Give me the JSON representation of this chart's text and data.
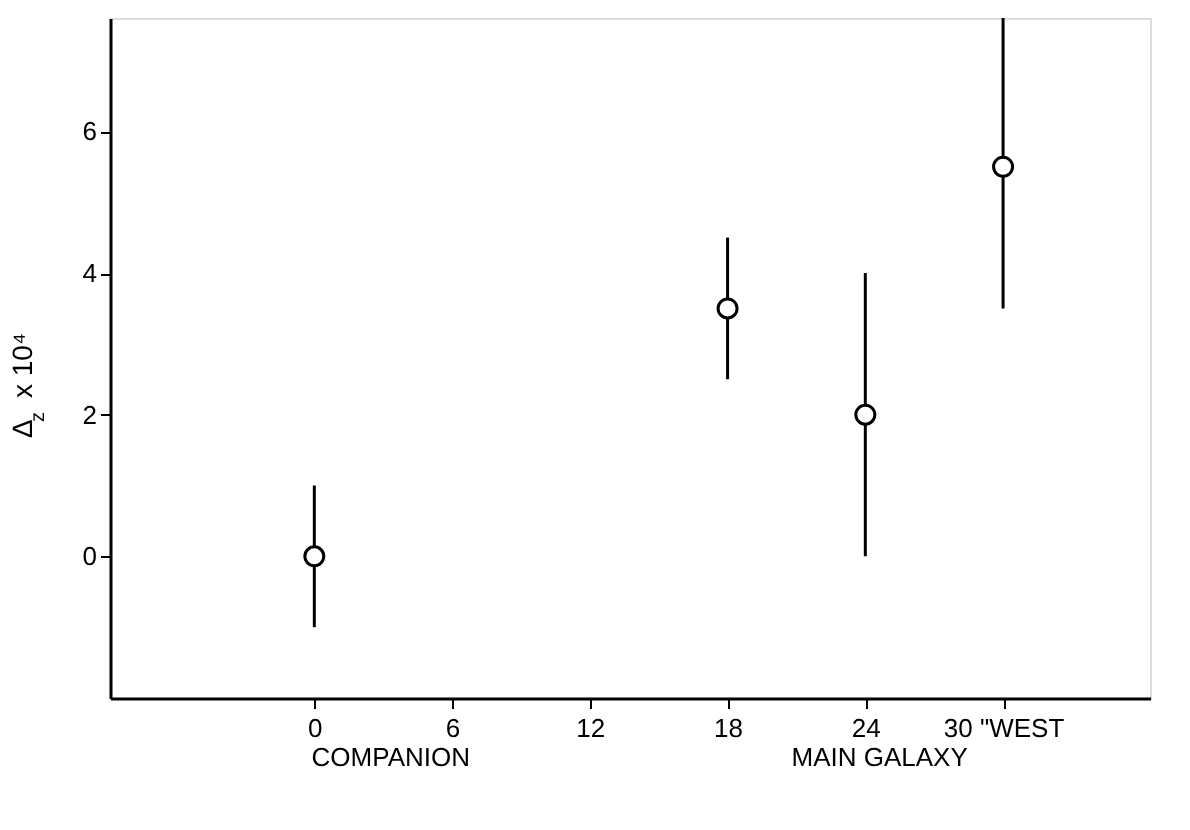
{
  "chart_data": {
    "type": "scatter",
    "ylabel": "Δ$_{z}$ x 10⁴",
    "x": [
      0,
      18,
      24,
      30
    ],
    "values": [
      0,
      3.5,
      2,
      5.5
    ],
    "errors": [
      1,
      [
        2.5,
        4.5
      ],
      [
        0,
        4
      ],
      [
        3.5,
        7.6
      ]
    ],
    "color": "#000000",
    "marker": "circle",
    "xlim": [
      -8.9,
      36.4
    ],
    "xticks": [
      0,
      6,
      12,
      18,
      24,
      {
        "value": 30,
        "label": "30 \"WEST"
      }
    ],
    "ylim": [
      -2.0,
      7.6
    ],
    "yticks": [
      0,
      2,
      4,
      6
    ],
    "grid": false,
    "annotations": [
      "COMPANION",
      "MAIN GALAXY"
    ]
  }
}
